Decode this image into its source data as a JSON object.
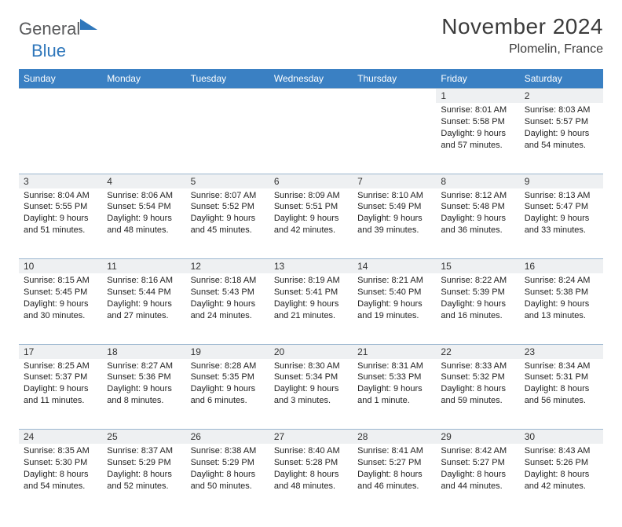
{
  "brand": {
    "part1": "General",
    "part2": "Blue"
  },
  "title": "November 2024",
  "location": "Plomelin, France",
  "colors": {
    "header_bg": "#3a80c3",
    "header_text": "#ffffff",
    "daynum_bg": "#eef0f2",
    "border": "#9bb6cf",
    "brand_gray": "#58595b",
    "brand_blue": "#2f77bb"
  },
  "day_headers": [
    "Sunday",
    "Monday",
    "Tuesday",
    "Wednesday",
    "Thursday",
    "Friday",
    "Saturday"
  ],
  "weeks": [
    [
      null,
      null,
      null,
      null,
      null,
      {
        "n": "1",
        "sr": "Sunrise: 8:01 AM",
        "ss": "Sunset: 5:58 PM",
        "d1": "Daylight: 9 hours",
        "d2": "and 57 minutes."
      },
      {
        "n": "2",
        "sr": "Sunrise: 8:03 AM",
        "ss": "Sunset: 5:57 PM",
        "d1": "Daylight: 9 hours",
        "d2": "and 54 minutes."
      }
    ],
    [
      {
        "n": "3",
        "sr": "Sunrise: 8:04 AM",
        "ss": "Sunset: 5:55 PM",
        "d1": "Daylight: 9 hours",
        "d2": "and 51 minutes."
      },
      {
        "n": "4",
        "sr": "Sunrise: 8:06 AM",
        "ss": "Sunset: 5:54 PM",
        "d1": "Daylight: 9 hours",
        "d2": "and 48 minutes."
      },
      {
        "n": "5",
        "sr": "Sunrise: 8:07 AM",
        "ss": "Sunset: 5:52 PM",
        "d1": "Daylight: 9 hours",
        "d2": "and 45 minutes."
      },
      {
        "n": "6",
        "sr": "Sunrise: 8:09 AM",
        "ss": "Sunset: 5:51 PM",
        "d1": "Daylight: 9 hours",
        "d2": "and 42 minutes."
      },
      {
        "n": "7",
        "sr": "Sunrise: 8:10 AM",
        "ss": "Sunset: 5:49 PM",
        "d1": "Daylight: 9 hours",
        "d2": "and 39 minutes."
      },
      {
        "n": "8",
        "sr": "Sunrise: 8:12 AM",
        "ss": "Sunset: 5:48 PM",
        "d1": "Daylight: 9 hours",
        "d2": "and 36 minutes."
      },
      {
        "n": "9",
        "sr": "Sunrise: 8:13 AM",
        "ss": "Sunset: 5:47 PM",
        "d1": "Daylight: 9 hours",
        "d2": "and 33 minutes."
      }
    ],
    [
      {
        "n": "10",
        "sr": "Sunrise: 8:15 AM",
        "ss": "Sunset: 5:45 PM",
        "d1": "Daylight: 9 hours",
        "d2": "and 30 minutes."
      },
      {
        "n": "11",
        "sr": "Sunrise: 8:16 AM",
        "ss": "Sunset: 5:44 PM",
        "d1": "Daylight: 9 hours",
        "d2": "and 27 minutes."
      },
      {
        "n": "12",
        "sr": "Sunrise: 8:18 AM",
        "ss": "Sunset: 5:43 PM",
        "d1": "Daylight: 9 hours",
        "d2": "and 24 minutes."
      },
      {
        "n": "13",
        "sr": "Sunrise: 8:19 AM",
        "ss": "Sunset: 5:41 PM",
        "d1": "Daylight: 9 hours",
        "d2": "and 21 minutes."
      },
      {
        "n": "14",
        "sr": "Sunrise: 8:21 AM",
        "ss": "Sunset: 5:40 PM",
        "d1": "Daylight: 9 hours",
        "d2": "and 19 minutes."
      },
      {
        "n": "15",
        "sr": "Sunrise: 8:22 AM",
        "ss": "Sunset: 5:39 PM",
        "d1": "Daylight: 9 hours",
        "d2": "and 16 minutes."
      },
      {
        "n": "16",
        "sr": "Sunrise: 8:24 AM",
        "ss": "Sunset: 5:38 PM",
        "d1": "Daylight: 9 hours",
        "d2": "and 13 minutes."
      }
    ],
    [
      {
        "n": "17",
        "sr": "Sunrise: 8:25 AM",
        "ss": "Sunset: 5:37 PM",
        "d1": "Daylight: 9 hours",
        "d2": "and 11 minutes."
      },
      {
        "n": "18",
        "sr": "Sunrise: 8:27 AM",
        "ss": "Sunset: 5:36 PM",
        "d1": "Daylight: 9 hours",
        "d2": "and 8 minutes."
      },
      {
        "n": "19",
        "sr": "Sunrise: 8:28 AM",
        "ss": "Sunset: 5:35 PM",
        "d1": "Daylight: 9 hours",
        "d2": "and 6 minutes."
      },
      {
        "n": "20",
        "sr": "Sunrise: 8:30 AM",
        "ss": "Sunset: 5:34 PM",
        "d1": "Daylight: 9 hours",
        "d2": "and 3 minutes."
      },
      {
        "n": "21",
        "sr": "Sunrise: 8:31 AM",
        "ss": "Sunset: 5:33 PM",
        "d1": "Daylight: 9 hours",
        "d2": "and 1 minute."
      },
      {
        "n": "22",
        "sr": "Sunrise: 8:33 AM",
        "ss": "Sunset: 5:32 PM",
        "d1": "Daylight: 8 hours",
        "d2": "and 59 minutes."
      },
      {
        "n": "23",
        "sr": "Sunrise: 8:34 AM",
        "ss": "Sunset: 5:31 PM",
        "d1": "Daylight: 8 hours",
        "d2": "and 56 minutes."
      }
    ],
    [
      {
        "n": "24",
        "sr": "Sunrise: 8:35 AM",
        "ss": "Sunset: 5:30 PM",
        "d1": "Daylight: 8 hours",
        "d2": "and 54 minutes."
      },
      {
        "n": "25",
        "sr": "Sunrise: 8:37 AM",
        "ss": "Sunset: 5:29 PM",
        "d1": "Daylight: 8 hours",
        "d2": "and 52 minutes."
      },
      {
        "n": "26",
        "sr": "Sunrise: 8:38 AM",
        "ss": "Sunset: 5:29 PM",
        "d1": "Daylight: 8 hours",
        "d2": "and 50 minutes."
      },
      {
        "n": "27",
        "sr": "Sunrise: 8:40 AM",
        "ss": "Sunset: 5:28 PM",
        "d1": "Daylight: 8 hours",
        "d2": "and 48 minutes."
      },
      {
        "n": "28",
        "sr": "Sunrise: 8:41 AM",
        "ss": "Sunset: 5:27 PM",
        "d1": "Daylight: 8 hours",
        "d2": "and 46 minutes."
      },
      {
        "n": "29",
        "sr": "Sunrise: 8:42 AM",
        "ss": "Sunset: 5:27 PM",
        "d1": "Daylight: 8 hours",
        "d2": "and 44 minutes."
      },
      {
        "n": "30",
        "sr": "Sunrise: 8:43 AM",
        "ss": "Sunset: 5:26 PM",
        "d1": "Daylight: 8 hours",
        "d2": "and 42 minutes."
      }
    ]
  ]
}
